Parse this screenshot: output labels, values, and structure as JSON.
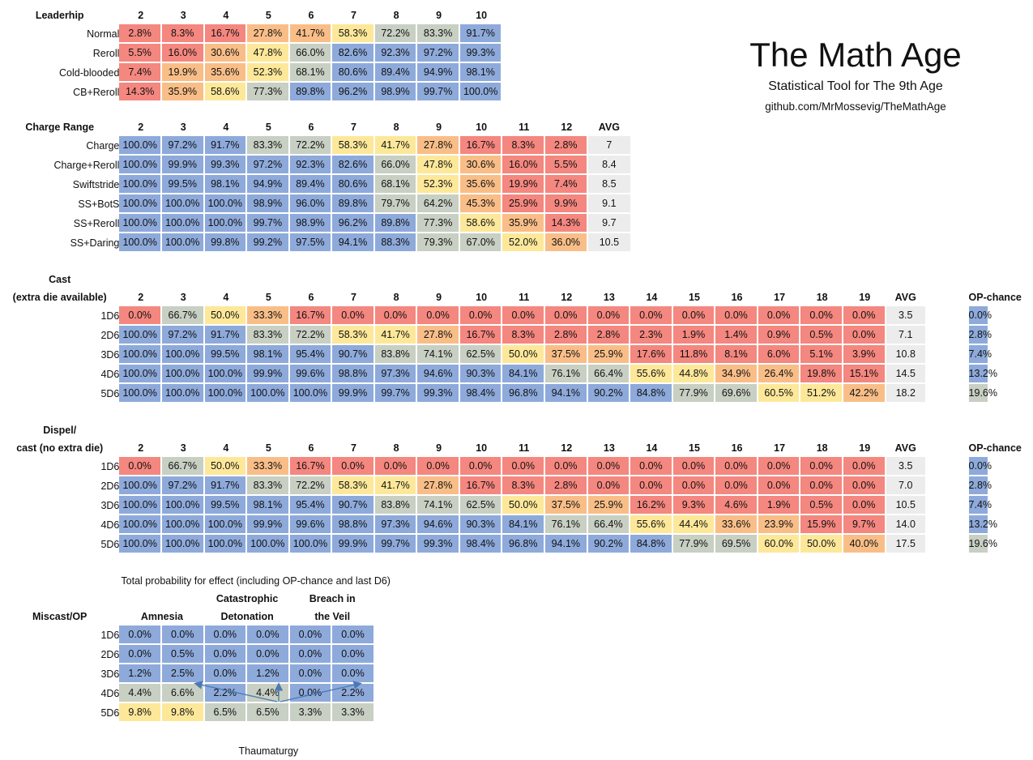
{
  "title": {
    "main": "The Math Age",
    "subtitle": "Statistical Tool for The 9th Age",
    "url": "github.com/MrMossevig/TheMathAge"
  },
  "colors": {
    "red": "#f4877f",
    "orange": "#f9be88",
    "yellow": "#fde89a",
    "grey": "#c8cfc3",
    "blue": "#8eaadb",
    "avg": "#ececec"
  },
  "leadership": {
    "heading": "Leaderhip",
    "cols": [
      "2",
      "3",
      "4",
      "5",
      "6",
      "7",
      "8",
      "9",
      "10"
    ],
    "rows": [
      {
        "label": "Normal",
        "values": [
          "2.8%",
          "8.3%",
          "16.7%",
          "27.8%",
          "41.7%",
          "58.3%",
          "72.2%",
          "83.3%",
          "91.7%"
        ],
        "tones": [
          "r",
          "r",
          "r",
          "o",
          "o",
          "y",
          "g",
          "g",
          "b"
        ]
      },
      {
        "label": "Reroll",
        "values": [
          "5.5%",
          "16.0%",
          "30.6%",
          "47.8%",
          "66.0%",
          "82.6%",
          "92.3%",
          "97.2%",
          "99.3%"
        ],
        "tones": [
          "r",
          "r",
          "o",
          "y",
          "g",
          "b",
          "b",
          "b",
          "b"
        ]
      },
      {
        "label": "Cold-blooded",
        "values": [
          "7.4%",
          "19.9%",
          "35.6%",
          "52.3%",
          "68.1%",
          "80.6%",
          "89.4%",
          "94.9%",
          "98.1%"
        ],
        "tones": [
          "r",
          "o",
          "o",
          "y",
          "g",
          "b",
          "b",
          "b",
          "b"
        ]
      },
      {
        "label": "CB+Reroll",
        "values": [
          "14.3%",
          "35.9%",
          "58.6%",
          "77.3%",
          "89.8%",
          "96.2%",
          "98.9%",
          "99.7%",
          "100.0%"
        ],
        "tones": [
          "r",
          "o",
          "y",
          "g",
          "b",
          "b",
          "b",
          "b",
          "b"
        ]
      }
    ]
  },
  "charge": {
    "heading": "Charge Range",
    "cols": [
      "2",
      "3",
      "4",
      "5",
      "6",
      "7",
      "8",
      "9",
      "10",
      "11",
      "12"
    ],
    "avg_heading": "AVG",
    "rows": [
      {
        "label": "Charge",
        "values": [
          "100.0%",
          "97.2%",
          "91.7%",
          "83.3%",
          "72.2%",
          "58.3%",
          "41.7%",
          "27.8%",
          "16.7%",
          "8.3%",
          "2.8%"
        ],
        "tones": [
          "b",
          "b",
          "b",
          "g",
          "g",
          "y",
          "y",
          "o",
          "r",
          "r",
          "r"
        ],
        "avg": "7"
      },
      {
        "label": "Charge+Reroll",
        "values": [
          "100.0%",
          "99.9%",
          "99.3%",
          "97.2%",
          "92.3%",
          "82.6%",
          "66.0%",
          "47.8%",
          "30.6%",
          "16.0%",
          "5.5%"
        ],
        "tones": [
          "b",
          "b",
          "b",
          "b",
          "b",
          "b",
          "g",
          "y",
          "o",
          "r",
          "r"
        ],
        "avg": "8.4"
      },
      {
        "label": "Swiftstride",
        "values": [
          "100.0%",
          "99.5%",
          "98.1%",
          "94.9%",
          "89.4%",
          "80.6%",
          "68.1%",
          "52.3%",
          "35.6%",
          "19.9%",
          "7.4%"
        ],
        "tones": [
          "b",
          "b",
          "b",
          "b",
          "b",
          "b",
          "g",
          "y",
          "o",
          "r",
          "r"
        ],
        "avg": "8.5"
      },
      {
        "label": "SS+BotS",
        "values": [
          "100.0%",
          "100.0%",
          "100.0%",
          "98.9%",
          "96.0%",
          "89.8%",
          "79.7%",
          "64.2%",
          "45.3%",
          "25.9%",
          "9.9%"
        ],
        "tones": [
          "b",
          "b",
          "b",
          "b",
          "b",
          "b",
          "g",
          "g",
          "o",
          "r",
          "r"
        ],
        "avg": "9.1"
      },
      {
        "label": "SS+Reroll",
        "values": [
          "100.0%",
          "100.0%",
          "100.0%",
          "99.7%",
          "98.9%",
          "96.2%",
          "89.8%",
          "77.3%",
          "58.6%",
          "35.9%",
          "14.3%"
        ],
        "tones": [
          "b",
          "b",
          "b",
          "b",
          "b",
          "b",
          "b",
          "g",
          "y",
          "o",
          "r"
        ],
        "avg": "9.7"
      },
      {
        "label": "SS+Daring",
        "values": [
          "100.0%",
          "100.0%",
          "99.8%",
          "99.2%",
          "97.5%",
          "94.1%",
          "88.3%",
          "79.3%",
          "67.0%",
          "52.0%",
          "36.0%"
        ],
        "tones": [
          "b",
          "b",
          "b",
          "b",
          "b",
          "b",
          "b",
          "g",
          "g",
          "y",
          "o"
        ],
        "avg": "10.5"
      }
    ]
  },
  "cast": {
    "heading1": "Cast",
    "heading2": "(extra die available)",
    "cols": [
      "2",
      "3",
      "4",
      "5",
      "6",
      "7",
      "8",
      "9",
      "10",
      "11",
      "12",
      "13",
      "14",
      "15",
      "16",
      "17",
      "18",
      "19"
    ],
    "avg_heading": "AVG",
    "op_heading": "OP-chance",
    "rows": [
      {
        "label": "1D6",
        "values": [
          "0.0%",
          "66.7%",
          "50.0%",
          "33.3%",
          "16.7%",
          "0.0%",
          "0.0%",
          "0.0%",
          "0.0%",
          "0.0%",
          "0.0%",
          "0.0%",
          "0.0%",
          "0.0%",
          "0.0%",
          "0.0%",
          "0.0%",
          "0.0%"
        ],
        "tones": [
          "r",
          "g",
          "y",
          "o",
          "r",
          "r",
          "r",
          "r",
          "r",
          "r",
          "r",
          "r",
          "r",
          "r",
          "r",
          "r",
          "r",
          "r"
        ],
        "avg": "3.5",
        "op": "0.0%",
        "op_tone": "b"
      },
      {
        "label": "2D6",
        "values": [
          "100.0%",
          "97.2%",
          "91.7%",
          "83.3%",
          "72.2%",
          "58.3%",
          "41.7%",
          "27.8%",
          "16.7%",
          "8.3%",
          "2.8%",
          "2.8%",
          "2.3%",
          "1.9%",
          "1.4%",
          "0.9%",
          "0.5%",
          "0.0%"
        ],
        "tones": [
          "b",
          "b",
          "b",
          "g",
          "g",
          "y",
          "y",
          "o",
          "r",
          "r",
          "r",
          "r",
          "r",
          "r",
          "r",
          "r",
          "r",
          "r"
        ],
        "avg": "7.1",
        "op": "2.8%",
        "op_tone": "b"
      },
      {
        "label": "3D6",
        "values": [
          "100.0%",
          "100.0%",
          "99.5%",
          "98.1%",
          "95.4%",
          "90.7%",
          "83.8%",
          "74.1%",
          "62.5%",
          "50.0%",
          "37.5%",
          "25.9%",
          "17.6%",
          "11.8%",
          "8.1%",
          "6.0%",
          "5.1%",
          "3.9%"
        ],
        "tones": [
          "b",
          "b",
          "b",
          "b",
          "b",
          "b",
          "g",
          "g",
          "g",
          "y",
          "o",
          "o",
          "r",
          "r",
          "r",
          "r",
          "r",
          "r"
        ],
        "avg": "10.8",
        "op": "7.4%",
        "op_tone": "b"
      },
      {
        "label": "4D6",
        "values": [
          "100.0%",
          "100.0%",
          "100.0%",
          "99.9%",
          "99.6%",
          "98.8%",
          "97.3%",
          "94.6%",
          "90.3%",
          "84.1%",
          "76.1%",
          "66.4%",
          "55.6%",
          "44.8%",
          "34.9%",
          "26.4%",
          "19.8%",
          "15.1%"
        ],
        "tones": [
          "b",
          "b",
          "b",
          "b",
          "b",
          "b",
          "b",
          "b",
          "b",
          "b",
          "g",
          "g",
          "y",
          "y",
          "o",
          "o",
          "r",
          "r"
        ],
        "avg": "14.5",
        "op": "13.2%",
        "op_tone": "b"
      },
      {
        "label": "5D6",
        "values": [
          "100.0%",
          "100.0%",
          "100.0%",
          "100.0%",
          "100.0%",
          "99.9%",
          "99.7%",
          "99.3%",
          "98.4%",
          "96.8%",
          "94.1%",
          "90.2%",
          "84.8%",
          "77.9%",
          "69.6%",
          "60.5%",
          "51.2%",
          "42.2%"
        ],
        "tones": [
          "b",
          "b",
          "b",
          "b",
          "b",
          "b",
          "b",
          "b",
          "b",
          "b",
          "b",
          "b",
          "b",
          "g",
          "g",
          "y",
          "y",
          "o"
        ],
        "avg": "18.2",
        "op": "19.6%",
        "op_tone": "g"
      }
    ]
  },
  "dispel": {
    "heading1": "Dispel/",
    "heading2": "cast (no extra die)",
    "cols": [
      "2",
      "3",
      "4",
      "5",
      "6",
      "7",
      "8",
      "9",
      "10",
      "11",
      "12",
      "13",
      "14",
      "15",
      "16",
      "17",
      "18",
      "19"
    ],
    "avg_heading": "AVG",
    "op_heading": "OP-chance",
    "rows": [
      {
        "label": "1D6",
        "values": [
          "0.0%",
          "66.7%",
          "50.0%",
          "33.3%",
          "16.7%",
          "0.0%",
          "0.0%",
          "0.0%",
          "0.0%",
          "0.0%",
          "0.0%",
          "0.0%",
          "0.0%",
          "0.0%",
          "0.0%",
          "0.0%",
          "0.0%",
          "0.0%"
        ],
        "tones": [
          "r",
          "g",
          "y",
          "o",
          "r",
          "r",
          "r",
          "r",
          "r",
          "r",
          "r",
          "r",
          "r",
          "r",
          "r",
          "r",
          "r",
          "r"
        ],
        "avg": "3.5",
        "op": "0.0%",
        "op_tone": "b"
      },
      {
        "label": "2D6",
        "values": [
          "100.0%",
          "97.2%",
          "91.7%",
          "83.3%",
          "72.2%",
          "58.3%",
          "41.7%",
          "27.8%",
          "16.7%",
          "8.3%",
          "2.8%",
          "0.0%",
          "0.0%",
          "0.0%",
          "0.0%",
          "0.0%",
          "0.0%",
          "0.0%"
        ],
        "tones": [
          "b",
          "b",
          "b",
          "g",
          "g",
          "y",
          "y",
          "o",
          "r",
          "r",
          "r",
          "r",
          "r",
          "r",
          "r",
          "r",
          "r",
          "r"
        ],
        "avg": "7.0",
        "op": "2.8%",
        "op_tone": "b"
      },
      {
        "label": "3D6",
        "values": [
          "100.0%",
          "100.0%",
          "99.5%",
          "98.1%",
          "95.4%",
          "90.7%",
          "83.8%",
          "74.1%",
          "62.5%",
          "50.0%",
          "37.5%",
          "25.9%",
          "16.2%",
          "9.3%",
          "4.6%",
          "1.9%",
          "0.5%",
          "0.0%"
        ],
        "tones": [
          "b",
          "b",
          "b",
          "b",
          "b",
          "b",
          "g",
          "g",
          "g",
          "y",
          "o",
          "o",
          "r",
          "r",
          "r",
          "r",
          "r",
          "r"
        ],
        "avg": "10.5",
        "op": "7.4%",
        "op_tone": "b"
      },
      {
        "label": "4D6",
        "values": [
          "100.0%",
          "100.0%",
          "100.0%",
          "99.9%",
          "99.6%",
          "98.8%",
          "97.3%",
          "94.6%",
          "90.3%",
          "84.1%",
          "76.1%",
          "66.4%",
          "55.6%",
          "44.4%",
          "33.6%",
          "23.9%",
          "15.9%",
          "9.7%"
        ],
        "tones": [
          "b",
          "b",
          "b",
          "b",
          "b",
          "b",
          "b",
          "b",
          "b",
          "b",
          "g",
          "g",
          "y",
          "y",
          "o",
          "o",
          "r",
          "r"
        ],
        "avg": "14.0",
        "op": "13.2%",
        "op_tone": "b"
      },
      {
        "label": "5D6",
        "values": [
          "100.0%",
          "100.0%",
          "100.0%",
          "100.0%",
          "100.0%",
          "99.9%",
          "99.7%",
          "99.3%",
          "98.4%",
          "96.8%",
          "94.1%",
          "90.2%",
          "84.8%",
          "77.9%",
          "69.5%",
          "60.0%",
          "50.0%",
          "40.0%"
        ],
        "tones": [
          "b",
          "b",
          "b",
          "b",
          "b",
          "b",
          "b",
          "b",
          "b",
          "b",
          "b",
          "b",
          "b",
          "g",
          "g",
          "y",
          "y",
          "o"
        ],
        "avg": "17.5",
        "op": "19.6%",
        "op_tone": "g"
      }
    ]
  },
  "miscast": {
    "caption": "Total probability for effect (including OP-chance and last D6)",
    "heading": "Miscast/OP",
    "groups": [
      {
        "line1": "",
        "line2": "Amnesia"
      },
      {
        "line1": "Catastrophic",
        "line2": "Detonation"
      },
      {
        "line1": "Breach in",
        "line2": "the Veil"
      }
    ],
    "rows": [
      {
        "label": "1D6",
        "values": [
          "0.0%",
          "0.0%",
          "0.0%",
          "0.0%",
          "0.0%",
          "0.0%"
        ],
        "tones": [
          "b",
          "b",
          "b",
          "b",
          "b",
          "b"
        ]
      },
      {
        "label": "2D6",
        "values": [
          "0.0%",
          "0.5%",
          "0.0%",
          "0.0%",
          "0.0%",
          "0.0%"
        ],
        "tones": [
          "b",
          "b",
          "b",
          "b",
          "b",
          "b"
        ]
      },
      {
        "label": "3D6",
        "values": [
          "1.2%",
          "2.5%",
          "0.0%",
          "1.2%",
          "0.0%",
          "0.0%"
        ],
        "tones": [
          "b",
          "b",
          "b",
          "b",
          "b",
          "b"
        ]
      },
      {
        "label": "4D6",
        "values": [
          "4.4%",
          "6.6%",
          "2.2%",
          "4.4%",
          "0.0%",
          "2.2%"
        ],
        "tones": [
          "g",
          "g",
          "b",
          "g",
          "b",
          "b"
        ]
      },
      {
        "label": "5D6",
        "values": [
          "9.8%",
          "9.8%",
          "6.5%",
          "6.5%",
          "3.3%",
          "3.3%"
        ],
        "tones": [
          "y",
          "y",
          "g",
          "g",
          "g",
          "g"
        ]
      }
    ],
    "annotation": "Thaumaturgy"
  }
}
